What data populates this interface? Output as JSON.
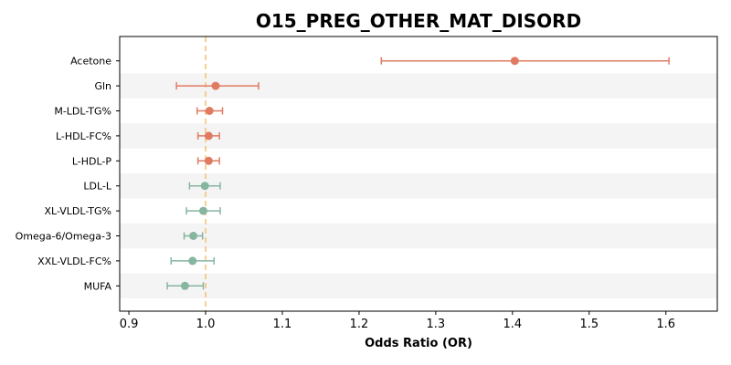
{
  "chart_data": {
    "type": "forest",
    "title": "O15_PREG_OTHER_MAT_DISORD",
    "xlabel": "Odds Ratio (OR)",
    "ylabel": "",
    "xlim": [
      0.888,
      1.667
    ],
    "xticks": [
      "0.9",
      "1.0",
      "1.1",
      "1.2",
      "1.3",
      "1.4",
      "1.5",
      "1.6"
    ],
    "reference_line": 1.0,
    "grid": false,
    "colors": {
      "positive": "#e07b62",
      "negative": "#86b5a0",
      "reference": "#f5c06f",
      "band": "#f4f4f4"
    },
    "rows": [
      {
        "label": "Acetone",
        "or": 1.403,
        "lo": 1.229,
        "hi": 1.604
      },
      {
        "label": "Gln",
        "or": 1.013,
        "lo": 0.962,
        "hi": 1.069
      },
      {
        "label": "M-LDL-TG%",
        "or": 1.005,
        "lo": 0.989,
        "hi": 1.022
      },
      {
        "label": "L-HDL-FC%",
        "or": 1.004,
        "lo": 0.99,
        "hi": 1.018
      },
      {
        "label": "L-HDL-P",
        "or": 1.004,
        "lo": 0.99,
        "hi": 1.018
      },
      {
        "label": "LDL-L",
        "or": 0.999,
        "lo": 0.979,
        "hi": 1.019
      },
      {
        "label": "XL-VLDL-TG%",
        "or": 0.997,
        "lo": 0.975,
        "hi": 1.019
      },
      {
        "label": "Omega-6/Omega-3",
        "or": 0.984,
        "lo": 0.972,
        "hi": 0.996
      },
      {
        "label": "XXL-VLDL-FC%",
        "or": 0.983,
        "lo": 0.955,
        "hi": 1.011
      },
      {
        "label": "MUFA",
        "or": 0.973,
        "lo": 0.95,
        "hi": 0.997
      }
    ]
  }
}
